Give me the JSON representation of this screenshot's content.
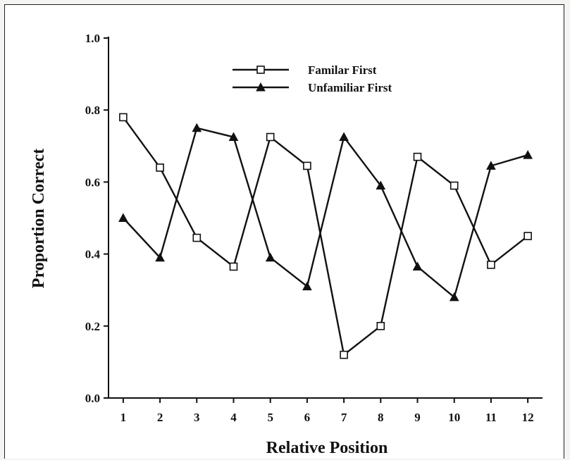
{
  "chart_data": {
    "type": "line",
    "xlabel": "Relative Position",
    "ylabel": "Proportion Correct",
    "x": [
      1,
      2,
      3,
      4,
      5,
      6,
      7,
      8,
      9,
      10,
      11,
      12
    ],
    "xlim": [
      0.6,
      12.4
    ],
    "ylim": [
      0,
      1.0
    ],
    "yticks": [
      0.0,
      0.2,
      0.4,
      0.6,
      0.8,
      1.0
    ],
    "ytick_labels": [
      "0.0",
      "0.2",
      "0.4",
      "0.6",
      "0.8",
      "1.0"
    ],
    "xtick_labels": [
      "1",
      "2",
      "3",
      "4",
      "5",
      "6",
      "7",
      "8",
      "9",
      "10",
      "11",
      "12"
    ],
    "grid": false,
    "legend_position": "top-center",
    "series": [
      {
        "name": "Familar First",
        "marker": "open-square",
        "values": [
          0.78,
          0.64,
          0.445,
          0.365,
          0.725,
          0.645,
          0.12,
          0.2,
          0.67,
          0.59,
          0.37,
          0.45
        ]
      },
      {
        "name": "Unfamiliar First",
        "marker": "filled-triangle",
        "values": [
          0.5,
          0.39,
          0.75,
          0.725,
          0.39,
          0.31,
          0.725,
          0.59,
          0.365,
          0.28,
          0.645,
          0.675
        ]
      }
    ]
  }
}
